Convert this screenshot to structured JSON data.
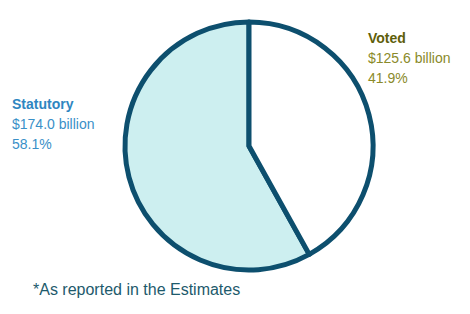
{
  "chart_data": {
    "type": "pie",
    "categories": [
      "Statutory",
      "Voted"
    ],
    "values": [
      174.0,
      125.6
    ],
    "value_labels": [
      "$174.0 billion",
      "$125.6 billion"
    ],
    "percents": [
      58.1,
      41.9
    ],
    "percent_labels": [
      "58.1%",
      "41.9%"
    ],
    "colors": [
      "#cdeff0",
      "#ffffff"
    ],
    "annotations": [
      "*As reported in the Estimates"
    ]
  }
}
